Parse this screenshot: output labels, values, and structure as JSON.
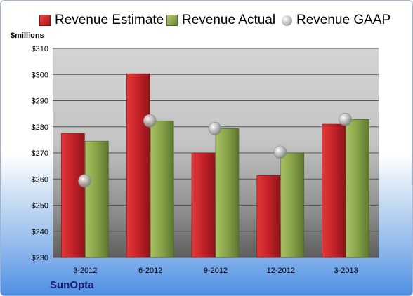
{
  "unit_label": "$millions",
  "brand": "SunOpta",
  "colors": {
    "estimate": "#c8232a",
    "actual": "#8aa64a",
    "gaap": "#b0b0b0"
  },
  "chart_data": {
    "type": "bar",
    "title": "",
    "ylabel": "$millions",
    "xlabel": "",
    "categories": [
      "3-2012",
      "6-2012",
      "9-2012",
      "12-2012",
      "3-2013"
    ],
    "series": [
      {
        "name": "Revenue Estimate",
        "type": "bar",
        "values": [
          277.5,
          300.3,
          270.0,
          261.3,
          281.0
        ]
      },
      {
        "name": "Revenue Actual",
        "type": "bar",
        "values": [
          274.5,
          282.3,
          279.3,
          270.0,
          282.8
        ]
      },
      {
        "name": "Revenue GAAP",
        "type": "scatter",
        "values": [
          259.3,
          282.3,
          279.3,
          270.3,
          282.8
        ]
      }
    ],
    "ylim": [
      230,
      310
    ],
    "yticks": [
      230,
      240,
      250,
      260,
      270,
      280,
      290,
      300,
      310
    ],
    "ytick_labels": [
      "$230",
      "$240",
      "$250",
      "$260",
      "$270",
      "$280",
      "$290",
      "$300",
      "$310"
    ],
    "grid": true,
    "legend": "top"
  }
}
